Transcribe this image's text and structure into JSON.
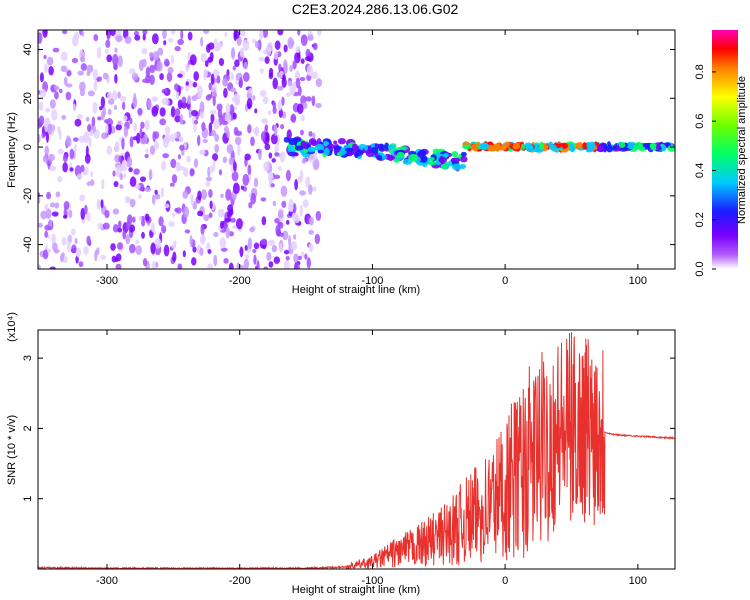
{
  "title": "C2E3.2024.286.13.06.G02",
  "chart_data": [
    {
      "type": "heatmap",
      "xlabel": "Height of straight line (km)",
      "ylabel": "Frequency (Hz)",
      "xlim": [
        -352,
        128
      ],
      "ylim": [
        -50,
        48
      ],
      "xticks": [
        -300,
        -200,
        -100,
        0,
        100
      ],
      "yticks": [
        -40,
        -20,
        0,
        20,
        40
      ],
      "colorbar": {
        "label": "Normalized spectral amplitude",
        "range": [
          0,
          0.97
        ],
        "ticks": [
          0,
          0.2,
          0.4,
          0.6,
          0.8
        ],
        "tick_labels": [
          "0.0",
          "0.2",
          "0.4",
          "0.6",
          "0.8"
        ],
        "colormap": "rainbow (white → violet → blue → cyan → green → yellow → red → magenta)"
      },
      "regions": [
        {
          "description": "broadband noise",
          "x_range": [
            -352,
            -140
          ],
          "y_range": [
            -50,
            48
          ],
          "amplitude": 0.1
        },
        {
          "description": "signal tracking band",
          "x_range": [
            -165,
            128
          ],
          "center_frequency": 0,
          "amplitude_max": 0.95
        }
      ]
    },
    {
      "type": "line",
      "xlabel": "Height of straight line (km)",
      "ylabel": "SNR (10 * v/v)",
      "y_scale_note": "(x10⁴)",
      "xlim": [
        -352,
        128
      ],
      "ylim": [
        0,
        3.4
      ],
      "xticks": [
        -300,
        -200,
        -100,
        0,
        100
      ],
      "yticks": [
        1,
        2,
        3
      ],
      "color": "#e8302c",
      "series": [
        {
          "x": [
            -352,
            -300,
            -250,
            -200,
            -150,
            -120,
            -100,
            -90,
            -80,
            -70,
            -60,
            -50,
            -40,
            -30,
            -20,
            -10,
            0,
            10,
            20,
            30,
            40,
            50,
            60,
            70,
            75,
            80,
            90,
            100,
            110,
            120,
            128
          ],
          "y": [
            0.02,
            0.01,
            0.01,
            0.01,
            0.01,
            0.03,
            0.1,
            0.18,
            0.25,
            0.3,
            0.38,
            0.45,
            0.55,
            0.68,
            0.8,
            0.95,
            1.15,
            1.35,
            1.55,
            1.75,
            1.95,
            2.0,
            2.05,
            2.0,
            1.95,
            1.92,
            1.9,
            1.89,
            1.88,
            1.87,
            1.86
          ]
        }
      ]
    }
  ]
}
